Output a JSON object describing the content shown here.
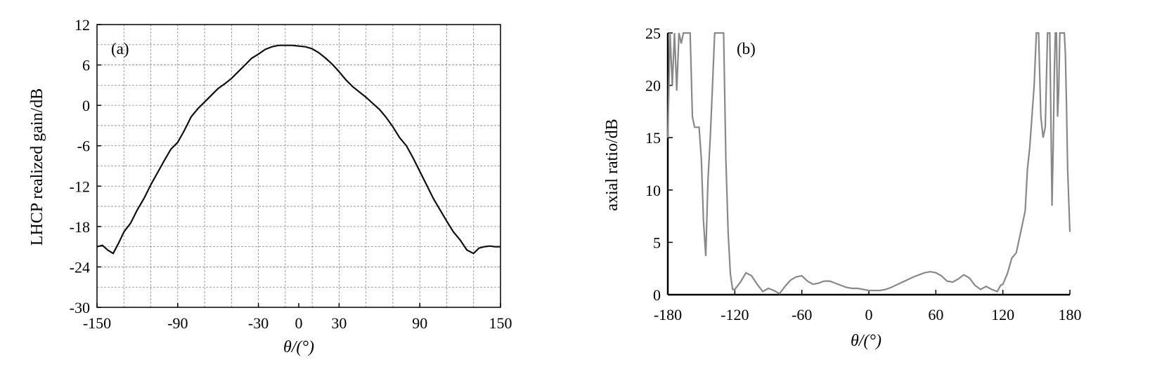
{
  "chart_data": [
    {
      "type": "line",
      "panel_label": "(a)",
      "xlabel": "θ/(°)",
      "ylabel": "LHCP realized gain/dB",
      "xlim": [
        -150,
        150
      ],
      "ylim": [
        -30,
        12
      ],
      "xticks": [
        -150,
        -90,
        -30,
        0,
        30,
        90,
        150
      ],
      "yticks": [
        12,
        6,
        0,
        -6,
        -12,
        -18,
        -24,
        -30
      ],
      "grid": true,
      "series": [
        {
          "color": "#111111",
          "x": [
            -150,
            -146,
            -142,
            -138,
            -134,
            -130,
            -125,
            -120,
            -115,
            -110,
            -105,
            -100,
            -95,
            -90,
            -85,
            -80,
            -75,
            -70,
            -65,
            -60,
            -55,
            -50,
            -45,
            -40,
            -35,
            -30,
            -25,
            -20,
            -15,
            -10,
            -5,
            0,
            5,
            10,
            15,
            20,
            25,
            30,
            35,
            40,
            45,
            50,
            55,
            60,
            65,
            70,
            75,
            80,
            85,
            90,
            95,
            100,
            105,
            110,
            115,
            120,
            125,
            130,
            134,
            138,
            142,
            146,
            150
          ],
          "y": [
            -21,
            -20.8,
            -21.5,
            -22,
            -20.5,
            -18.8,
            -17.5,
            -15.5,
            -13.8,
            -11.8,
            -10,
            -8.2,
            -6.5,
            -5.5,
            -3.7,
            -1.7,
            -0.5,
            0.5,
            1.5,
            2.5,
            3.2,
            4,
            5,
            6,
            7,
            7.6,
            8.3,
            8.7,
            8.9,
            8.9,
            8.9,
            8.8,
            8.7,
            8.4,
            7.8,
            7,
            6.1,
            5,
            3.8,
            2.8,
            2,
            1.2,
            0.3,
            -0.6,
            -1.8,
            -3.2,
            -4.8,
            -6,
            -7.8,
            -9.8,
            -11.8,
            -13.8,
            -15.5,
            -17.2,
            -18.8,
            -20,
            -21.5,
            -22,
            -21.2,
            -21,
            -20.9,
            -21,
            -21
          ]
        }
      ]
    },
    {
      "type": "line",
      "panel_label": "(b)",
      "xlabel": "θ/(°)",
      "ylabel": "axial ratio/dB",
      "xlim": [
        -180,
        180
      ],
      "ylim": [
        0,
        25
      ],
      "xticks": [
        -180,
        -120,
        -60,
        0,
        60,
        120,
        180
      ],
      "yticks": [
        25,
        20,
        15,
        10,
        5,
        0
      ],
      "grid": false,
      "series": [
        {
          "color": "#888888",
          "x": [
            -180,
            -178,
            -176,
            -174,
            -172,
            -170,
            -168,
            -166,
            -164,
            -162,
            -160,
            -158,
            -156,
            -154,
            -152,
            -150,
            -148,
            -146,
            -144,
            -142,
            -140,
            -138,
            -136,
            -134,
            -132,
            -130,
            -128,
            -126,
            -124,
            -122,
            -120,
            -115,
            -110,
            -105,
            -100,
            -95,
            -90,
            -85,
            -80,
            -75,
            -70,
            -65,
            -60,
            -55,
            -50,
            -45,
            -40,
            -35,
            -30,
            -25,
            -20,
            -15,
            -10,
            -5,
            0,
            5,
            10,
            15,
            20,
            30,
            40,
            50,
            55,
            60,
            65,
            70,
            75,
            80,
            85,
            90,
            95,
            100,
            105,
            110,
            115,
            118,
            120,
            124,
            128,
            132,
            136,
            140,
            142,
            144,
            146,
            148,
            150,
            152,
            154,
            156,
            158,
            160,
            162,
            164,
            165,
            166,
            167,
            168,
            169,
            170,
            171,
            172,
            173,
            174,
            175,
            176,
            177,
            178,
            180
          ],
          "y": [
            15,
            25,
            20,
            25,
            19.5,
            25,
            24,
            25,
            25,
            25,
            25,
            17,
            16,
            16,
            16,
            13,
            7,
            3.7,
            11,
            15,
            20,
            25,
            25,
            25,
            25,
            25,
            13,
            6,
            2,
            0.5,
            0.5,
            1.2,
            2.1,
            1.8,
            1,
            0.3,
            0.6,
            0.4,
            0.1,
            0.8,
            1.4,
            1.7,
            1.8,
            1.3,
            1,
            1.1,
            1.3,
            1.3,
            1.1,
            0.9,
            0.7,
            0.6,
            0.6,
            0.5,
            0.4,
            0.4,
            0.4,
            0.5,
            0.7,
            1.2,
            1.7,
            2.1,
            2.2,
            2.1,
            1.8,
            1.3,
            1.2,
            1.5,
            1.9,
            1.6,
            0.9,
            0.5,
            0.8,
            0.5,
            0.3,
            0.9,
            1,
            2,
            3.5,
            4,
            6,
            8,
            12,
            14,
            17,
            20,
            25,
            25,
            17,
            15,
            16,
            25,
            25,
            8.5,
            14,
            21,
            25,
            25,
            17,
            19.5,
            25,
            25,
            25,
            25,
            25,
            23,
            18,
            12,
            6
          ]
        }
      ]
    }
  ]
}
